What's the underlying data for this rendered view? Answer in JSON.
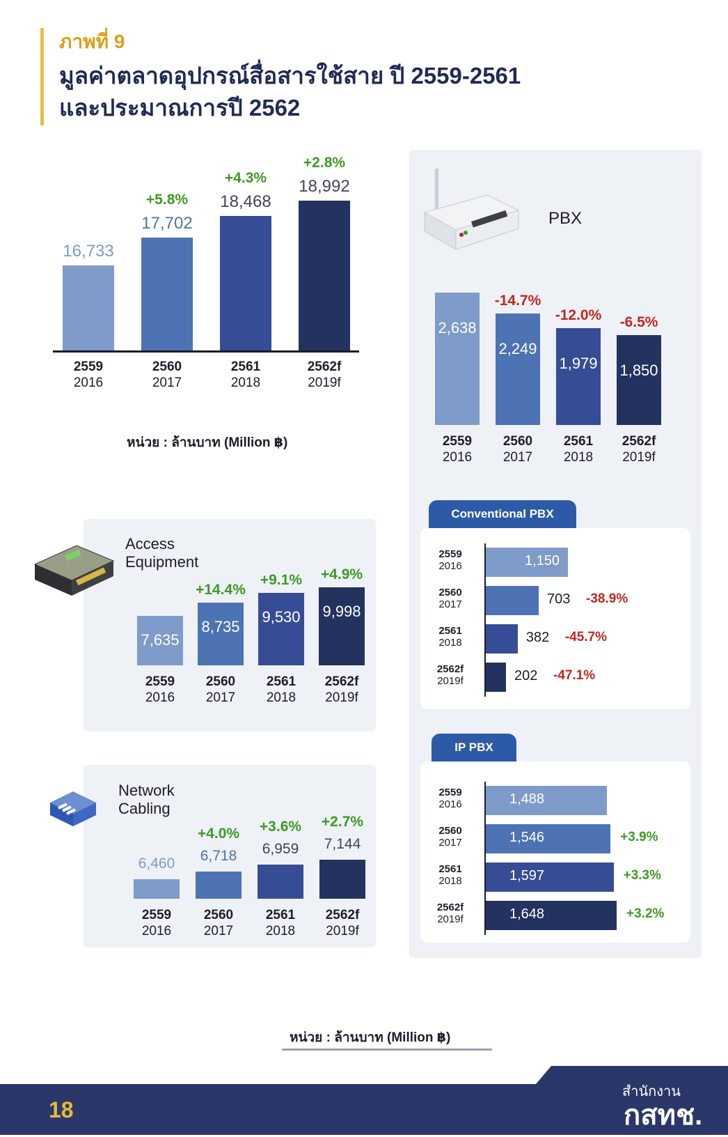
{
  "figure_label": "ภาพที่ 9",
  "title_line1": "มูลค่าตลาดอุปกรณ์สื่อสารใช้สาย ปี 2559-2561",
  "title_line2": "และประมาณการปี 2562",
  "unit_label": "หน่วย : ล้านบาท (Million ฿)",
  "page_number": "18",
  "brand_line1": "สำนักงาน",
  "brand_line2": "กสทช.",
  "colors": {
    "c1": "#7f9bc9",
    "c2": "#4d73b4",
    "c3": "#364d95",
    "c4": "#23325f",
    "pos": "#3d9a25",
    "neg": "#c0281e"
  },
  "chart_data": [
    {
      "id": "total",
      "type": "bar",
      "title": "",
      "categories": [
        [
          "2559",
          "2016"
        ],
        [
          "2560",
          "2017"
        ],
        [
          "2561",
          "2018"
        ],
        [
          "2562f",
          "2019f"
        ]
      ],
      "values": [
        "16,733",
        "17,702",
        "18,468",
        "18,992"
      ],
      "growth": [
        "",
        "+5.8%",
        "+4.3%",
        "+2.8%"
      ]
    },
    {
      "id": "pbx",
      "type": "bar",
      "title": "PBX",
      "categories": [
        [
          "2559",
          "2016"
        ],
        [
          "2560",
          "2017"
        ],
        [
          "2561",
          "2018"
        ],
        [
          "2562f",
          "2019f"
        ]
      ],
      "values": [
        "2,638",
        "2,249",
        "1,979",
        "1,850"
      ],
      "growth": [
        "",
        "-14.7%",
        "-12.0%",
        "-6.5%"
      ]
    },
    {
      "id": "access",
      "type": "bar",
      "title": "Access Equipment",
      "categories": [
        [
          "2559",
          "2016"
        ],
        [
          "2560",
          "2017"
        ],
        [
          "2561",
          "2018"
        ],
        [
          "2562f",
          "2019f"
        ]
      ],
      "values": [
        "7,635",
        "8,735",
        "9,530",
        "9,998"
      ],
      "growth": [
        "",
        "+14.4%",
        "+9.1%",
        "+4.9%"
      ]
    },
    {
      "id": "cabling",
      "type": "bar",
      "title": "Network Cabling",
      "categories": [
        [
          "2559",
          "2016"
        ],
        [
          "2560",
          "2017"
        ],
        [
          "2561",
          "2018"
        ],
        [
          "2562f",
          "2019f"
        ]
      ],
      "values": [
        "6,460",
        "6,718",
        "6,959",
        "7,144"
      ],
      "growth": [
        "",
        "+4.0%",
        "+3.6%",
        "+2.7%"
      ]
    },
    {
      "id": "conv",
      "type": "bar",
      "title": "Conventional PBX",
      "categories": [
        [
          "2559",
          "2016"
        ],
        [
          "2560",
          "2017"
        ],
        [
          "2561",
          "2018"
        ],
        [
          "2562f",
          "2019f"
        ]
      ],
      "values": [
        "1,150",
        "703",
        "382",
        "202"
      ],
      "growth": [
        "",
        "-38.9%",
        "-45.7%",
        "-47.1%"
      ]
    },
    {
      "id": "ippbx",
      "type": "bar",
      "title": "IP PBX",
      "categories": [
        [
          "2559",
          "2016"
        ],
        [
          "2560",
          "2017"
        ],
        [
          "2561",
          "2018"
        ],
        [
          "2562f",
          "2019f"
        ]
      ],
      "values": [
        "1,488",
        "1,546",
        "1,597",
        "1,648"
      ],
      "growth": [
        "",
        "+3.9%",
        "+3.3%",
        "+3.2%"
      ]
    }
  ]
}
